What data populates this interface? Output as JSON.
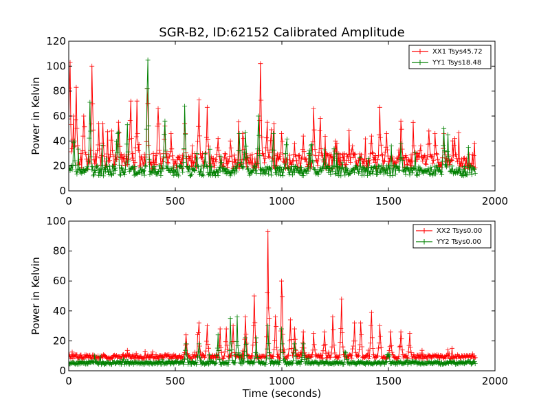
{
  "figure": {
    "title": "SGR-B2, ID:62152 Calibrated Amplitude"
  },
  "chart_data": [
    {
      "type": "line",
      "marker": "+",
      "title": "SGR-B2, ID:62152 Calibrated Amplitude",
      "xlabel": "",
      "ylabel": "Power in Kelvin",
      "xlim": [
        0,
        2000
      ],
      "ylim": [
        0,
        120
      ],
      "xticks": [
        "0",
        "500",
        "1000",
        "1500",
        "2000"
      ],
      "yticks": [
        "0",
        "20",
        "40",
        "60",
        "80",
        "100",
        "120"
      ],
      "grid": false,
      "legend_position": "top-right",
      "series": [
        {
          "name": "XX1 Tsys45.72",
          "color": "#ff0000",
          "baseline": 22,
          "noise": 9,
          "x_end": 1910,
          "peaks": [
            [
              5,
              103
            ],
            [
              22,
              60
            ],
            [
              35,
              83
            ],
            [
              70,
              60
            ],
            [
              110,
              100
            ],
            [
              140,
              54
            ],
            [
              160,
              54
            ],
            [
              200,
              48
            ],
            [
              235,
              55
            ],
            [
              290,
              72
            ],
            [
              320,
              72
            ],
            [
              370,
              70
            ],
            [
              420,
              66
            ],
            [
              450,
              52
            ],
            [
              480,
              46
            ],
            [
              545,
              54
            ],
            [
              610,
              73
            ],
            [
              650,
              67
            ],
            [
              700,
              42
            ],
            [
              760,
              40
            ],
            [
              820,
              42
            ],
            [
              900,
              102
            ],
            [
              930,
              55
            ],
            [
              950,
              49
            ],
            [
              1000,
              46
            ],
            [
              1060,
              38
            ],
            [
              1100,
              44
            ],
            [
              1150,
              66
            ],
            [
              1180,
              58
            ],
            [
              1250,
              40
            ],
            [
              1330,
              36
            ],
            [
              1420,
              44
            ],
            [
              1460,
              67
            ],
            [
              1490,
              46
            ],
            [
              1560,
              56
            ],
            [
              1620,
              36
            ],
            [
              1650,
              36
            ],
            [
              1690,
              48
            ],
            [
              1720,
              46
            ],
            [
              1760,
              46
            ],
            [
              1810,
              42
            ]
          ]
        },
        {
          "name": "YY1 Tsys18.48",
          "color": "#008000",
          "baseline": 15,
          "noise": 6,
          "x_end": 1910,
          "peaks": [
            [
              25,
              40
            ],
            [
              100,
              71
            ],
            [
              230,
              46
            ],
            [
              275,
              53
            ],
            [
              370,
              105
            ],
            [
              450,
              56
            ],
            [
              545,
              68
            ],
            [
              600,
              30
            ],
            [
              640,
              30
            ],
            [
              800,
              46
            ],
            [
              830,
              47
            ],
            [
              890,
              60
            ],
            [
              960,
              46
            ],
            [
              1020,
              37
            ],
            [
              1140,
              37
            ],
            [
              1200,
              33
            ],
            [
              1560,
              38
            ],
            [
              1760,
              50
            ],
            [
              1780,
              45
            ]
          ]
        }
      ]
    },
    {
      "type": "line",
      "marker": "+",
      "title": "",
      "xlabel": "Time (seconds)",
      "ylabel": "Power in Kelvin",
      "xlim": [
        0,
        2000
      ],
      "ylim": [
        0,
        100
      ],
      "xticks": [
        "0",
        "500",
        "1000",
        "1500",
        "2000"
      ],
      "yticks": [
        "0",
        "20",
        "40",
        "60",
        "80",
        "100"
      ],
      "grid": false,
      "legend_position": "top-right",
      "series": [
        {
          "name": "XX2 Tsys0.00",
          "color": "#ff0000",
          "baseline": 9,
          "noise": 2,
          "x_end": 1910,
          "peaks": [
            [
              550,
              24
            ],
            [
              610,
              32
            ],
            [
              650,
              30
            ],
            [
              710,
              28
            ],
            [
              740,
              28
            ],
            [
              770,
              30
            ],
            [
              830,
              36
            ],
            [
              870,
              50
            ],
            [
              935,
              93
            ],
            [
              970,
              36
            ],
            [
              1000,
              60
            ],
            [
              1040,
              34
            ],
            [
              1060,
              28
            ],
            [
              1100,
              26
            ],
            [
              1150,
              25
            ],
            [
              1200,
              26
            ],
            [
              1240,
              36
            ],
            [
              1280,
              48
            ],
            [
              1340,
              32
            ],
            [
              1370,
              32
            ],
            [
              1420,
              39
            ],
            [
              1460,
              30
            ],
            [
              1510,
              26
            ],
            [
              1560,
              26
            ],
            [
              1600,
              25
            ]
          ]
        },
        {
          "name": "YY2 Tsys0.00",
          "color": "#008000",
          "baseline": 5,
          "noise": 1.5,
          "x_end": 1910,
          "peaks": [
            [
              550,
              18
            ],
            [
              610,
              18
            ],
            [
              700,
              24
            ],
            [
              760,
              35
            ],
            [
              790,
              36
            ],
            [
              830,
              22
            ],
            [
              880,
              22
            ],
            [
              935,
              30
            ],
            [
              1000,
              28
            ],
            [
              1060,
              18
            ],
            [
              1100,
              18
            ],
            [
              1300,
              12
            ],
            [
              1500,
              11
            ]
          ]
        }
      ]
    }
  ]
}
